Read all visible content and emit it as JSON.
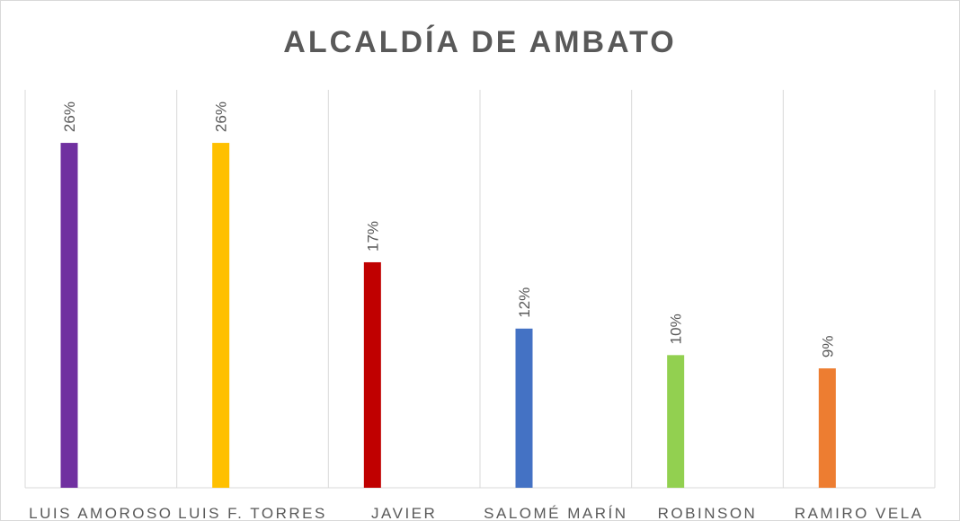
{
  "chart_data": {
    "type": "bar",
    "title": "ALCALDÍA DE AMBATO",
    "categories": [
      "LUIS AMOROSO",
      "LUIS F. TORRES",
      "JAVIER",
      "SALOMÉ MARÍN",
      "ROBINSON",
      "RAMIRO VELA"
    ],
    "values": [
      26,
      26,
      17,
      12,
      10,
      9
    ],
    "value_labels": [
      "26%",
      "26%",
      "17%",
      "12%",
      "10%",
      "9%"
    ],
    "colors": [
      "#7030a0",
      "#ffc000",
      "#c00000",
      "#4472c4",
      "#92d050",
      "#ed7d31"
    ],
    "ylim": [
      0,
      30
    ]
  }
}
